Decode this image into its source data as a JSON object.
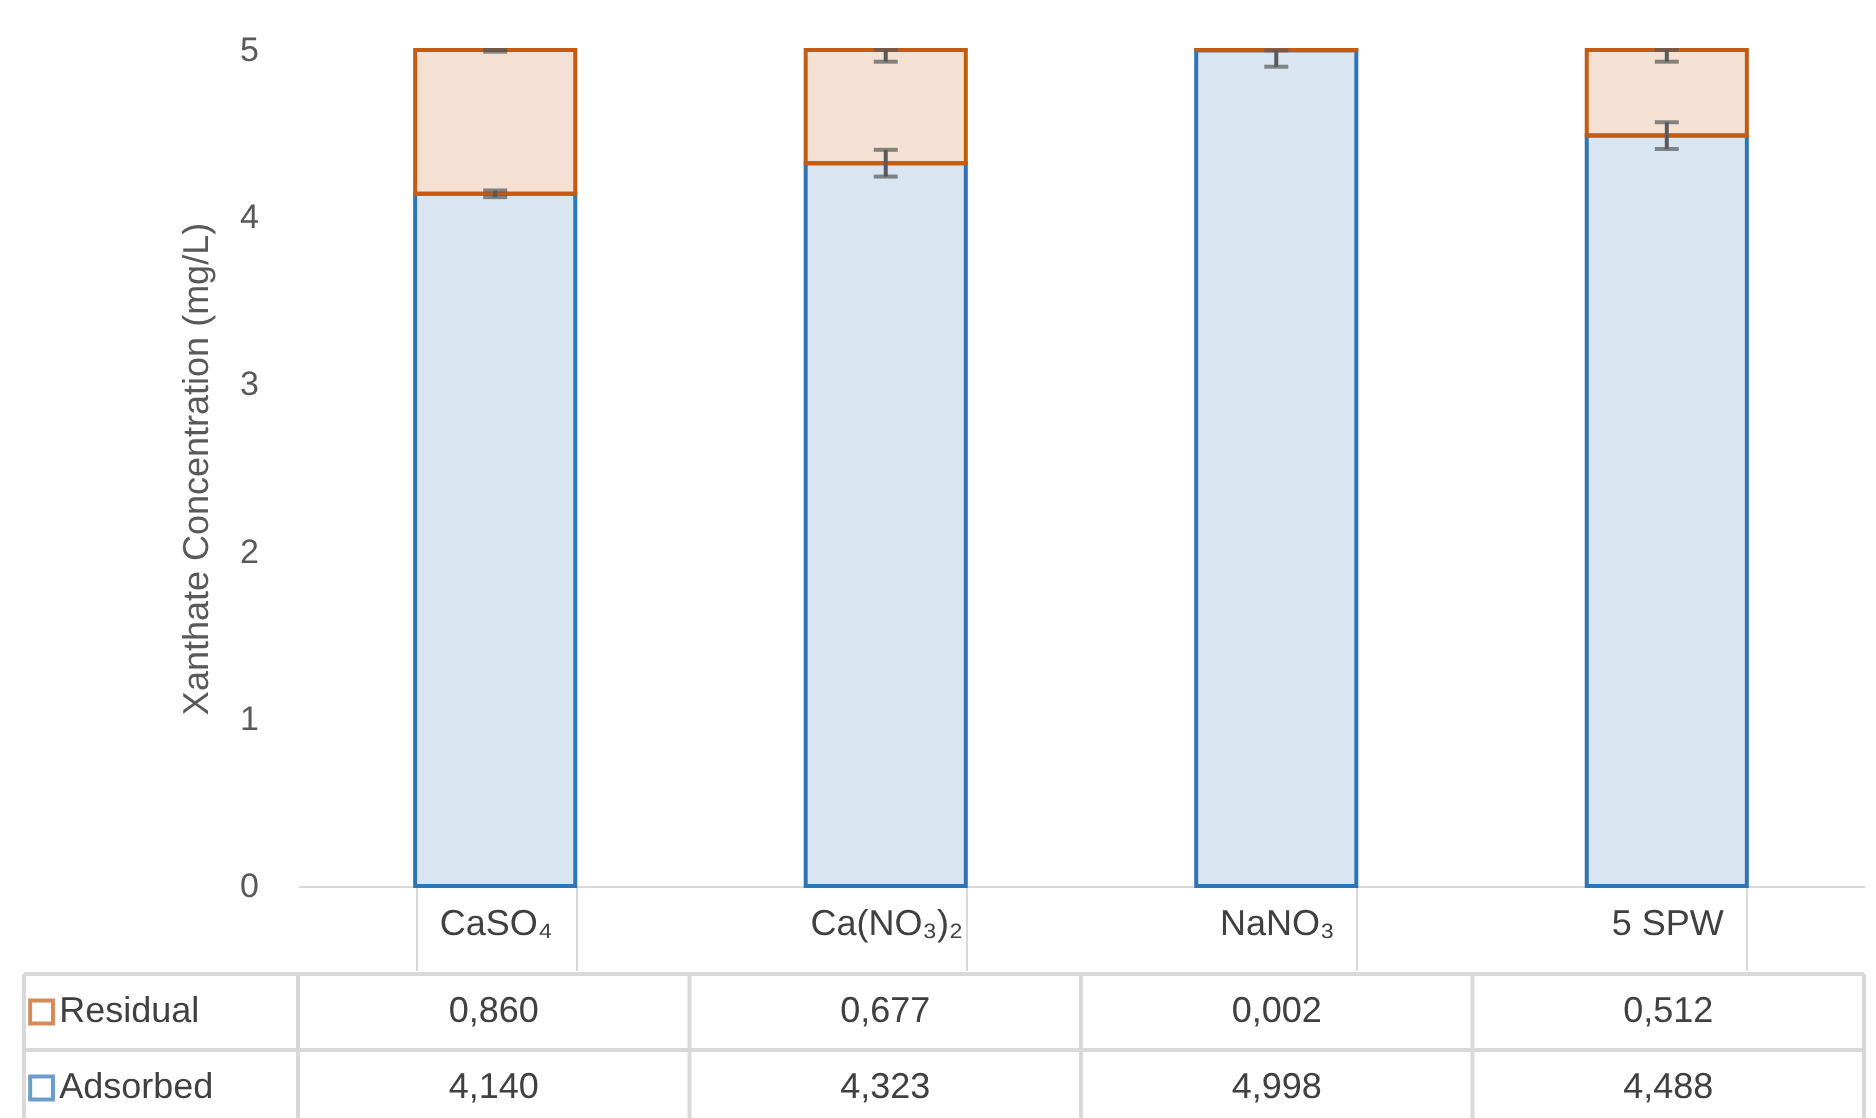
{
  "chart_data": {
    "type": "bar",
    "stacked": true,
    "ylabel": "Xanthate Concentration (mg/L)",
    "categories": [
      "CaSO₄",
      "Ca(NO₃)₂",
      "NaNO₃",
      "5 SPW"
    ],
    "series": [
      {
        "name": "Adsorbed",
        "color": "#2e75b6",
        "values": [
          4.14,
          4.323,
          4.998,
          4.488
        ],
        "value_labels": [
          "4,140",
          "4,323",
          "4,998",
          "4,488"
        ],
        "errors": [
          0.02,
          0.08,
          [
            4.9,
            4.998
          ],
          0.08
        ]
      },
      {
        "name": "Residual",
        "color": "#c55a11",
        "values": [
          0.86,
          0.677,
          0.002,
          0.512
        ],
        "value_labels": [
          "0,860",
          "0,677",
          "0,002",
          "0,512"
        ],
        "errors": [
          [
            4.99,
            5.0
          ],
          [
            4.93,
            5.0
          ],
          null,
          [
            4.93,
            5.0
          ]
        ]
      }
    ],
    "ylim": [
      0,
      5
    ],
    "yticks": [
      0,
      1,
      2,
      3,
      4,
      5
    ],
    "legend": "bottom left"
  }
}
